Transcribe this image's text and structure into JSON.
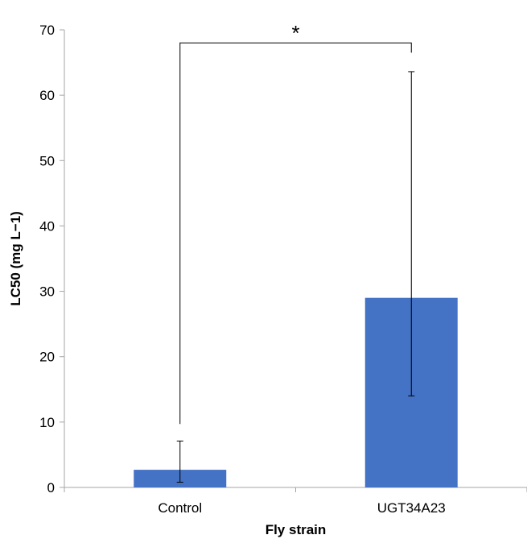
{
  "chart_data": {
    "type": "bar",
    "title": "",
    "xlabel": "Fly strain",
    "ylabel": "LC50 (mg L−1)",
    "categories": [
      "Control",
      "UGT34A23"
    ],
    "values": [
      2.7,
      29.0
    ],
    "error_bars": [
      {
        "low": 0.8,
        "high": 7.1
      },
      {
        "low": 14.0,
        "high": 63.6
      }
    ],
    "ylim": [
      0,
      70
    ],
    "yticks": [
      0,
      10,
      20,
      30,
      40,
      50,
      60,
      70
    ],
    "ytick_labels": [
      "0",
      "10",
      "20",
      "30",
      "40",
      "50",
      "60",
      "70"
    ],
    "grid": false,
    "legend": "none",
    "bar_color": "#4472C4",
    "axis_color": "#A6A6A6",
    "significance": {
      "label": "*",
      "between": [
        "Control",
        "UGT34A23"
      ],
      "bracket_y": 68,
      "left_end_y": 9.7,
      "right_end_y": 66.5
    }
  }
}
